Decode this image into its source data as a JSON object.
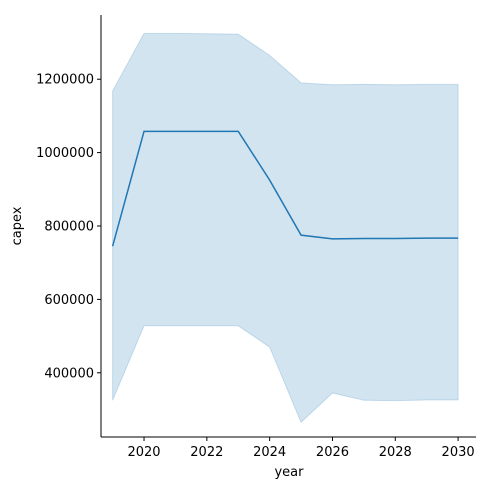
{
  "chart_data": {
    "type": "line",
    "xlabel": "year",
    "ylabel": "capex",
    "xlim": [
      2018.63,
      2030.57
    ],
    "ylim": [
      225000,
      1375000
    ],
    "x_ticks": [
      2020,
      2022,
      2024,
      2026,
      2028,
      2030
    ],
    "x_tick_labels": [
      "2020",
      "2022",
      "2024",
      "2026",
      "2028",
      "2030"
    ],
    "y_ticks": [
      400000,
      600000,
      800000,
      1000000,
      1200000
    ],
    "y_tick_labels": [
      "400000",
      "600000",
      "800000",
      "1000000",
      "1200000"
    ],
    "grid": false,
    "legend": "none",
    "series": [
      {
        "color": "#1f77b4",
        "band_color": "#1f77b4",
        "band_opacity": 0.2,
        "x": [
          2019,
          2020,
          2021,
          2022,
          2023,
          2024,
          2025,
          2026,
          2027,
          2028,
          2029,
          2030
        ],
        "y": [
          745000,
          1058000,
          1058000,
          1058000,
          1058000,
          925000,
          775000,
          765000,
          766000,
          766000,
          767000,
          767000
        ],
        "ci_upper": [
          1168000,
          1325000,
          1325000,
          1324000,
          1323000,
          1265000,
          1190000,
          1185000,
          1186000,
          1185000,
          1186000,
          1186000
        ],
        "ci_lower": [
          325000,
          528000,
          528000,
          528000,
          528000,
          470000,
          265000,
          345000,
          325000,
          324000,
          326000,
          326000
        ]
      }
    ]
  }
}
